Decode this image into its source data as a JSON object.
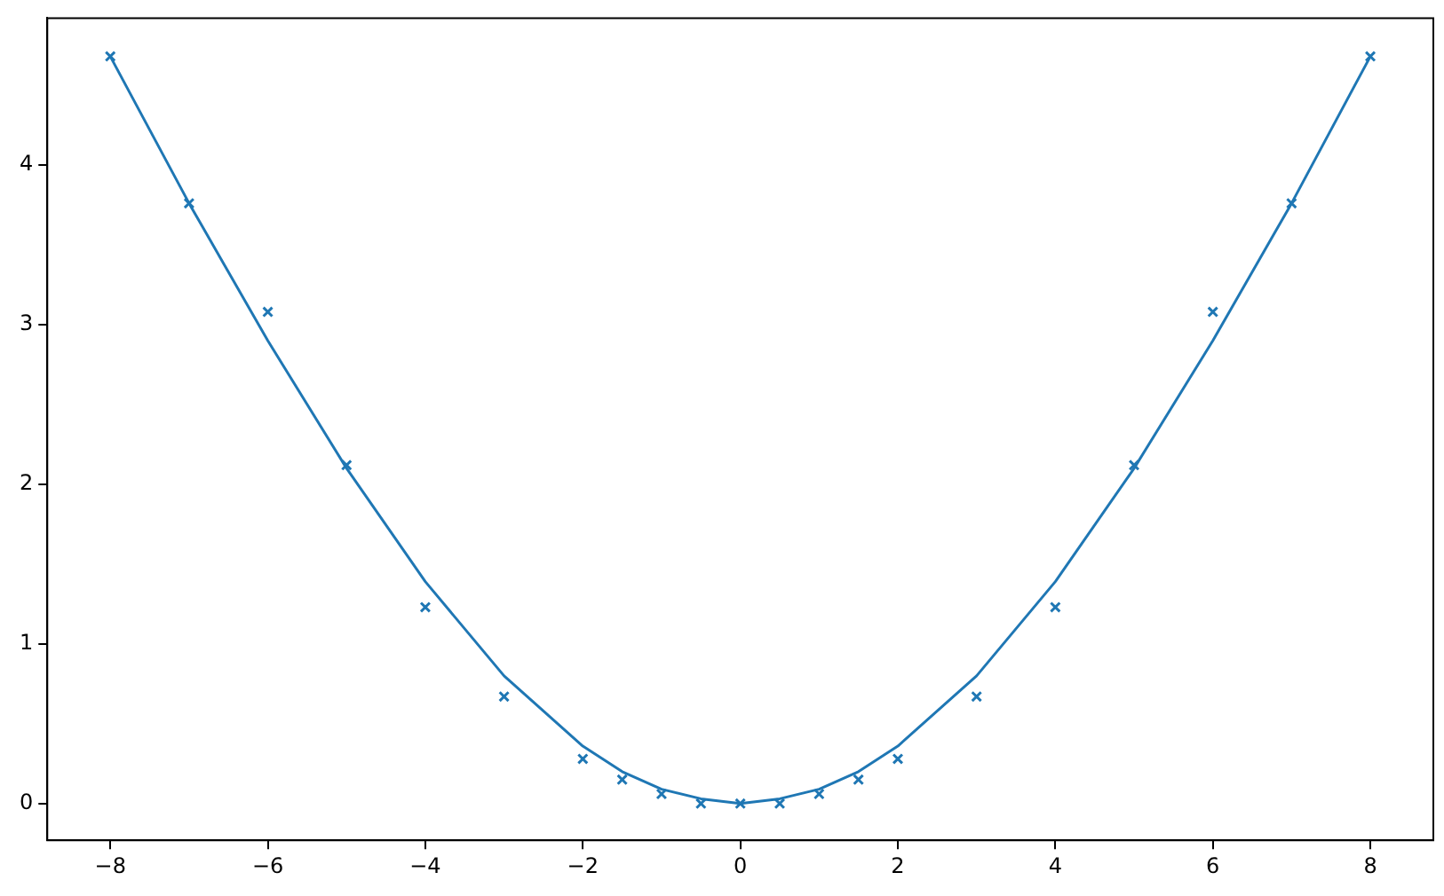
{
  "chart_data": {
    "type": "scatter",
    "xlim": [
      -8.8,
      8.8
    ],
    "xticks": [
      {
        "value": -8,
        "label": "−8"
      },
      {
        "value": -6,
        "label": "−6"
      },
      {
        "value": -4,
        "label": "−4"
      },
      {
        "value": -2,
        "label": "−2"
      },
      0,
      2,
      4,
      6,
      8
    ],
    "ylim": [
      -0.23,
      4.92
    ],
    "yticks": [
      0,
      1,
      2,
      3,
      4
    ],
    "grid": false,
    "legend": false,
    "series": [
      {
        "color": "#1f77b4",
        "marker": "cross",
        "x": [
          -8,
          -7,
          -6,
          -5,
          -4,
          -3,
          -2,
          -1.5,
          -1,
          -0.5,
          0,
          0.5,
          1,
          1.5,
          2,
          3,
          4,
          5,
          6,
          7,
          8
        ],
        "values": [
          4.68,
          3.76,
          3.08,
          2.12,
          1.23,
          0.67,
          0.28,
          0.15,
          0.06,
          0,
          0,
          0,
          0.06,
          0.15,
          0.28,
          0.67,
          1.23,
          2.12,
          3.08,
          3.76,
          4.68
        ]
      },
      {
        "type": "line",
        "color": "#1f77b4",
        "marker": "none",
        "line_style": "solid",
        "x": [
          -8,
          -7,
          -6,
          -5,
          -4,
          -3,
          -2,
          -1.5,
          -1,
          -0.5,
          0,
          0.5,
          1,
          1.5,
          2,
          3,
          4,
          5,
          6,
          7,
          8
        ],
        "values": [
          4.68,
          3.76,
          2.9,
          2.1,
          1.39,
          0.8,
          0.36,
          0.2,
          0.09,
          0.03,
          0,
          0.03,
          0.09,
          0.2,
          0.36,
          0.8,
          1.39,
          2.1,
          2.9,
          3.76,
          4.68
        ]
      }
    ]
  }
}
